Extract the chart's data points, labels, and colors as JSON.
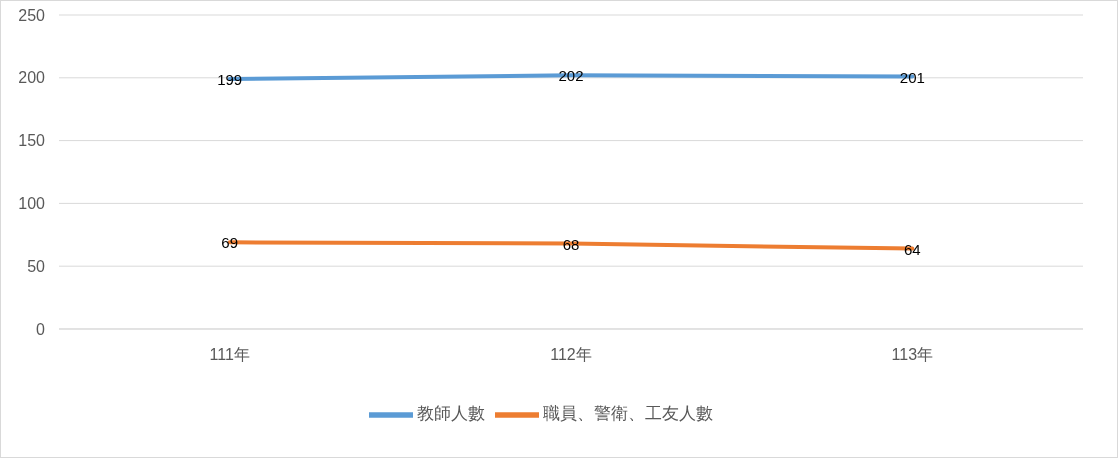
{
  "chart_data": {
    "type": "line",
    "categories": [
      "111年",
      "112年",
      "113年"
    ],
    "series": [
      {
        "name": "教師人數",
        "color": "#5b9bd5",
        "values": [
          199,
          202,
          201
        ]
      },
      {
        "name": "職員、警衛、工友人數",
        "color": "#ed7d31",
        "values": [
          69,
          68,
          64
        ]
      }
    ],
    "ylim": [
      0,
      250
    ],
    "yticks": [
      0,
      50,
      100,
      150,
      200,
      250
    ],
    "grid": "y",
    "legend": "bottom",
    "marker": "none",
    "line_style": "solid",
    "data_labels": true
  }
}
